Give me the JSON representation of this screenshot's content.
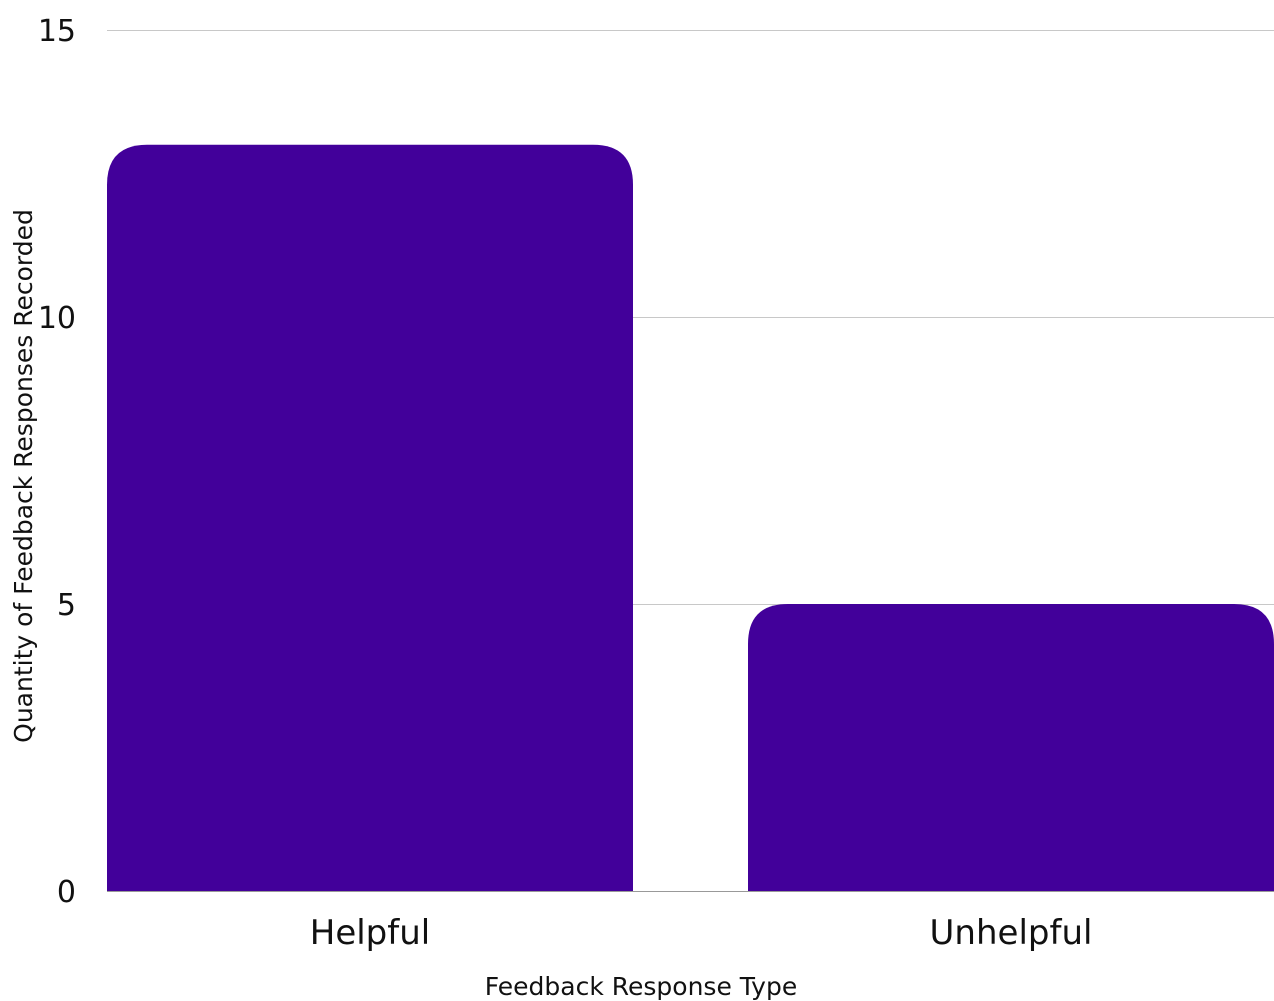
{
  "chart_data": {
    "type": "bar",
    "title": "",
    "categories": [
      "Helpful",
      "Unhelpful"
    ],
    "values": [
      13,
      5
    ],
    "xlabel": "Feedback Response Type",
    "ylabel": "Quantity of Feedback Responses Recorded",
    "ylim": [
      0,
      15
    ],
    "yticks": [
      0,
      5,
      10,
      15
    ],
    "ytick_labels": [
      "0",
      "5",
      "10",
      "15"
    ],
    "grid": true,
    "legend": "none",
    "bar_color": "#42009a"
  }
}
